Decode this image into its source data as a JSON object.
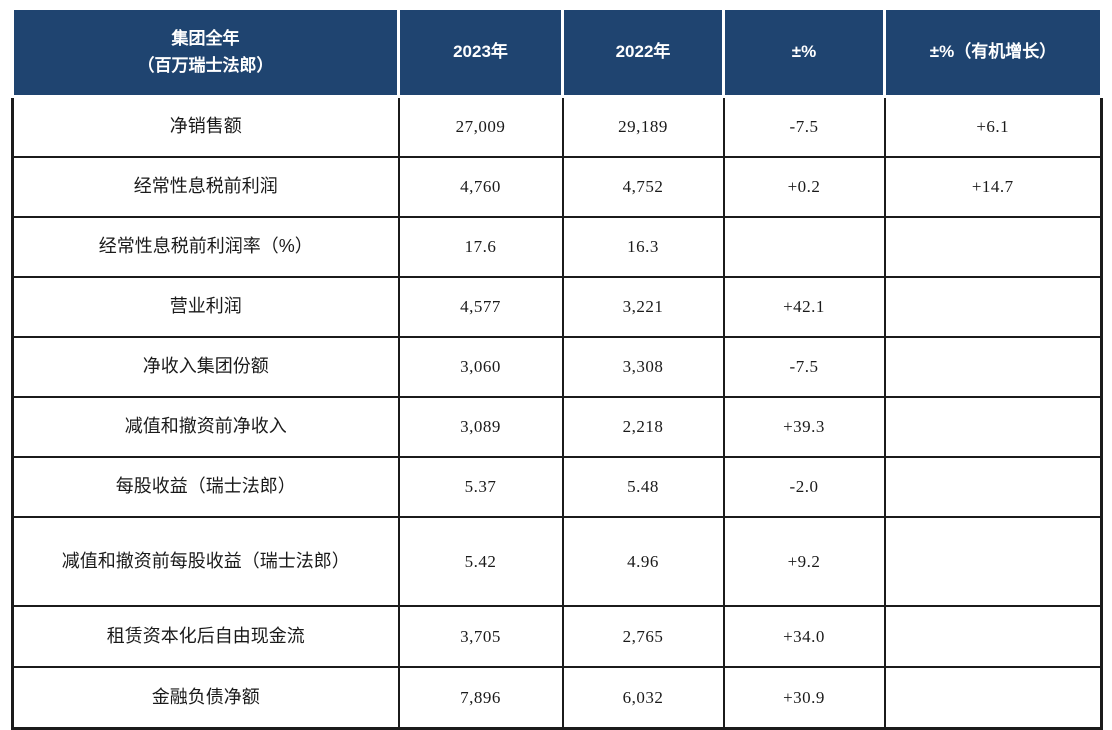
{
  "colors": {
    "header_bg": "#1f4470",
    "header_text": "#ffffff",
    "body_border": "#1b1b1b",
    "body_text": "#1a1a1a"
  },
  "table": {
    "header": {
      "col1_line1": "集团全年",
      "col1_line2": "（百万瑞士法郎）",
      "col2": "2023年",
      "col3": "2022年",
      "col4": "±%",
      "col5": "±%（有机增长）"
    },
    "rows": [
      {
        "label": "净销售额",
        "y2023": "27,009",
        "y2022": "29,189",
        "pct": "-7.5",
        "pct_organic": "+6.1"
      },
      {
        "label": "经常性息税前利润",
        "y2023": "4,760",
        "y2022": "4,752",
        "pct": "+0.2",
        "pct_organic": "+14.7"
      },
      {
        "label": "经常性息税前利润率（%）",
        "y2023": "17.6",
        "y2022": "16.3",
        "pct": "",
        "pct_organic": ""
      },
      {
        "label": "营业利润",
        "y2023": "4,577",
        "y2022": "3,221",
        "pct": "+42.1",
        "pct_organic": ""
      },
      {
        "label": "净收入集团份额",
        "y2023": "3,060",
        "y2022": "3,308",
        "pct": "-7.5",
        "pct_organic": ""
      },
      {
        "label": "减值和撤资前净收入",
        "y2023": "3,089",
        "y2022": "2,218",
        "pct": "+39.3",
        "pct_organic": ""
      },
      {
        "label": "每股收益（瑞士法郎）",
        "y2023": "5.37",
        "y2022": "5.48",
        "pct": "-2.0",
        "pct_organic": ""
      },
      {
        "label": "减值和撤资前每股收益（瑞士法郎）",
        "y2023": "5.42",
        "y2022": "4.96",
        "pct": "+9.2",
        "pct_organic": ""
      },
      {
        "label": "租赁资本化后自由现金流",
        "y2023": "3,705",
        "y2022": "2,765",
        "pct": "+34.0",
        "pct_organic": ""
      },
      {
        "label": "金融负债净额",
        "y2023": "7,896",
        "y2022": "6,032",
        "pct": "+30.9",
        "pct_organic": ""
      }
    ]
  }
}
